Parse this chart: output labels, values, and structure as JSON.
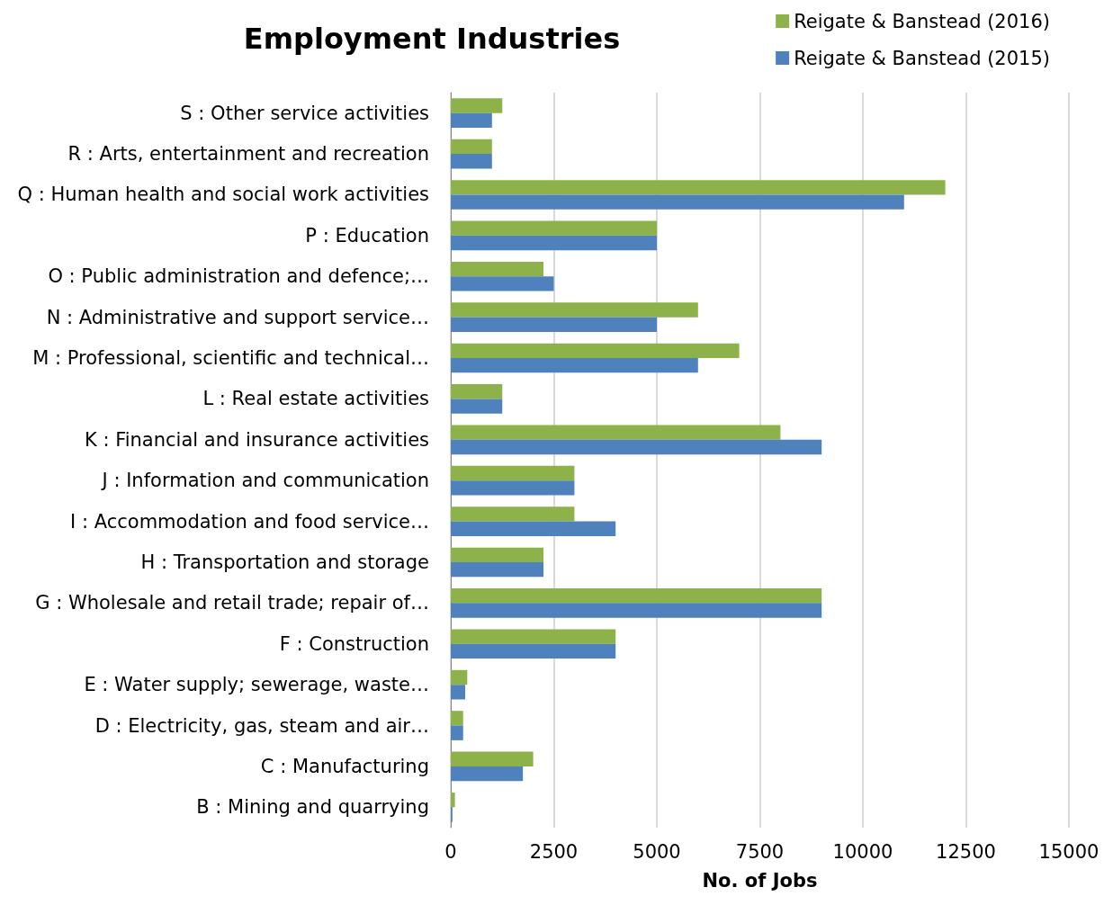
{
  "chart_data": {
    "type": "bar",
    "orientation": "horizontal",
    "title": "Employment Industries",
    "xlabel": "No. of Jobs",
    "categories": [
      "S : Other service activities",
      "R : Arts, entertainment and recreation",
      "Q : Human health and social work activities",
      "P : Education",
      "O : Public administration and defence;…",
      "N : Administrative and support service…",
      "M : Professional, scientific and technical…",
      "L : Real estate activities",
      "K : Financial and insurance activities",
      "J : Information and communication",
      "I : Accommodation and food service…",
      "H : Transportation and storage",
      "G : Wholesale and retail trade; repair of…",
      "F : Construction",
      "E : Water supply; sewerage, waste…",
      "D : Electricity, gas, steam and air…",
      "C : Manufacturing",
      "B : Mining and quarrying"
    ],
    "series": [
      {
        "name": "Reigate & Banstead (2016)",
        "color": "#8db24a",
        "values": [
          1250,
          1000,
          12000,
          5000,
          2250,
          6000,
          7000,
          1250,
          8000,
          3000,
          3000,
          2250,
          9000,
          4000,
          400,
          300,
          2000,
          100
        ]
      },
      {
        "name": "Reigate & Banstead (2015)",
        "color": "#4f81bd",
        "values": [
          1000,
          1000,
          11000,
          5000,
          2500,
          5000,
          6000,
          1250,
          9000,
          3000,
          4000,
          2250,
          9000,
          4000,
          350,
          300,
          1750,
          40
        ]
      }
    ],
    "xlim": [
      0,
      15000
    ],
    "xticks": [
      0,
      2500,
      5000,
      7500,
      10000,
      12500,
      15000
    ],
    "grid": "x",
    "legend": "top right"
  }
}
